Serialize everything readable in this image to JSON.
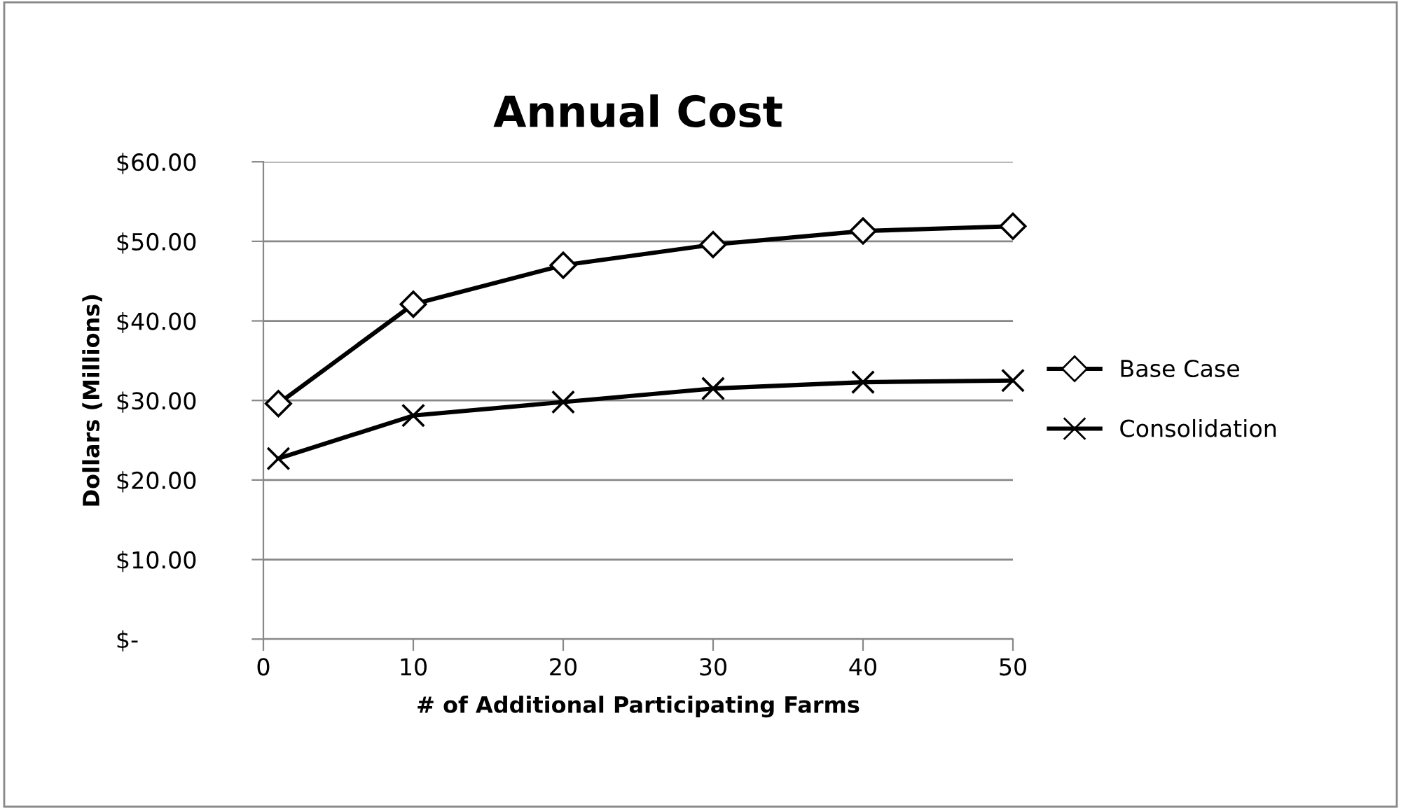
{
  "chart_data": {
    "type": "line",
    "title": "Annual Cost",
    "xlabel": "# of Additional Participating Farms",
    "ylabel": "Dollars (Millions)",
    "x": [
      1,
      10,
      20,
      30,
      40,
      50
    ],
    "series": [
      {
        "name": "Base Case",
        "color": "#000000",
        "marker": "diamond",
        "values": [
          29.6,
          42.1,
          47.0,
          49.6,
          51.3,
          51.9
        ]
      },
      {
        "name": "Consolidation",
        "color": "#000000",
        "marker": "cross",
        "values": [
          22.7,
          28.1,
          29.8,
          31.5,
          32.3,
          32.5
        ]
      }
    ],
    "xlim": [
      0,
      50
    ],
    "xticks": [
      0,
      10,
      20,
      30,
      40,
      50
    ],
    "ylim": [
      0,
      60
    ],
    "yticks": [
      {
        "value": 0,
        "label": "$-"
      },
      {
        "value": 10,
        "label": "$10.00"
      },
      {
        "value": 20,
        "label": "$20.00"
      },
      {
        "value": 30,
        "label": "$30.00"
      },
      {
        "value": 40,
        "label": "$40.00"
      },
      {
        "value": 50,
        "label": "$50.00"
      },
      {
        "value": 60,
        "label": "$60.00"
      }
    ],
    "grid": "y",
    "legend": "right",
    "line_style": "solid"
  }
}
